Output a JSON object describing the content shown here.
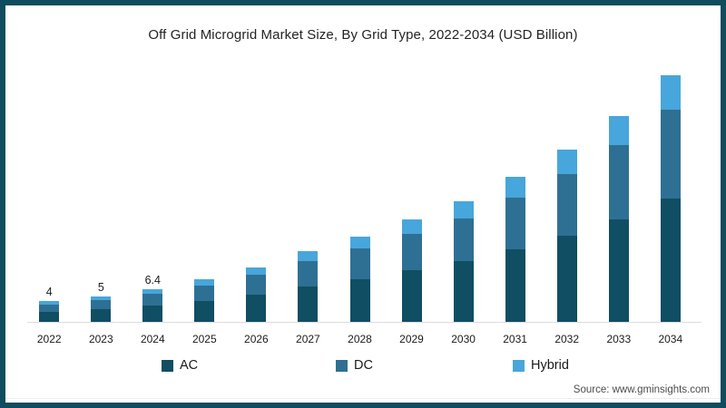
{
  "frame": {
    "border_color": "#0e4c5e",
    "background": "#ffffff"
  },
  "chart_data": {
    "type": "bar",
    "stacked": true,
    "title": "Off Grid Microgrid Market Size, By Grid Type, 2022-2034 (USD Billion)",
    "categories": [
      "2022",
      "2023",
      "2024",
      "2025",
      "2026",
      "2027",
      "2028",
      "2029",
      "2030",
      "2031",
      "2032",
      "2033",
      "2034"
    ],
    "series": [
      {
        "name": "AC",
        "color": "#104e63",
        "values": [
          2.0,
          2.5,
          3.2,
          4.15,
          5.3,
          6.9,
          8.3,
          10.0,
          11.75,
          14.1,
          16.75,
          20.0,
          24.0
        ]
      },
      {
        "name": "DC",
        "color": "#2e7093",
        "values": [
          1.44,
          1.8,
          2.3,
          2.99,
          3.82,
          4.97,
          5.98,
          7.2,
          8.46,
          10.15,
          12.06,
          14.4,
          17.28
        ]
      },
      {
        "name": "Hybrid",
        "color": "#47a6db",
        "values": [
          0.56,
          0.7,
          0.9,
          1.16,
          1.48,
          1.93,
          2.32,
          2.8,
          3.29,
          3.95,
          4.69,
          5.6,
          6.72
        ]
      }
    ],
    "totals": [
      4,
      5,
      6.4,
      8.3,
      10.6,
      13.8,
      16.6,
      20,
      23.5,
      28.2,
      33.5,
      40,
      48
    ],
    "bar_labels": [
      "4",
      "5",
      "6.4",
      null,
      null,
      null,
      null,
      null,
      null,
      null,
      null,
      null,
      null
    ],
    "xlabel": "",
    "ylabel": "",
    "ylim": [
      0,
      52
    ],
    "grid": false,
    "axis_line_color": "#dcdcdc",
    "legend_position": "bottom"
  },
  "source": "Source: www.gminsights.com"
}
